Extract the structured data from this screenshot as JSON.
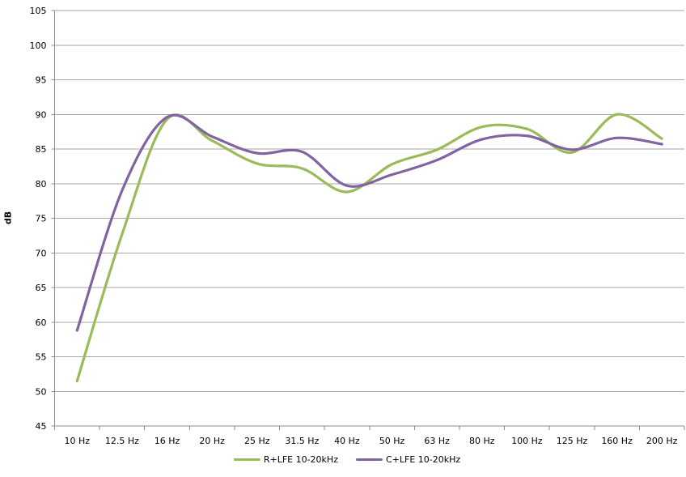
{
  "chart_data": {
    "type": "line",
    "title": "",
    "xlabel": "",
    "ylabel": "dB",
    "ylim": [
      45,
      105
    ],
    "y_ticks": [
      45,
      50,
      55,
      60,
      65,
      70,
      75,
      80,
      85,
      90,
      95,
      100,
      105
    ],
    "grid": true,
    "smooth_lines": true,
    "legend_position": "bottom-center",
    "categories": [
      "10 Hz",
      "12.5 Hz",
      "16 Hz",
      "20 Hz",
      "25 Hz",
      "31.5 Hz",
      "40 Hz",
      "50 Hz",
      "63 Hz",
      "80 Hz",
      "100 Hz",
      "125 Hz",
      "160 Hz",
      "200 Hz"
    ],
    "series": [
      {
        "name": "R+LFE 10-20kHz",
        "color": "#9BBB59",
        "values": [
          51.5,
          72.7,
          89.3,
          86.2,
          82.9,
          82.2,
          78.8,
          82.8,
          84.9,
          88.2,
          87.9,
          84.5,
          90.0,
          86.5
        ]
      },
      {
        "name": "C+LFE 10-20kHz",
        "color": "#8064A2",
        "values": [
          58.8,
          79.0,
          89.6,
          86.8,
          84.4,
          84.6,
          79.7,
          81.3,
          83.4,
          86.4,
          86.9,
          84.9,
          86.6,
          85.7
        ]
      }
    ],
    "colors": {
      "gridline": "#A6A6A6",
      "axis": "#8C8C8C",
      "text": "#000000",
      "background": "#FFFFFF"
    }
  }
}
